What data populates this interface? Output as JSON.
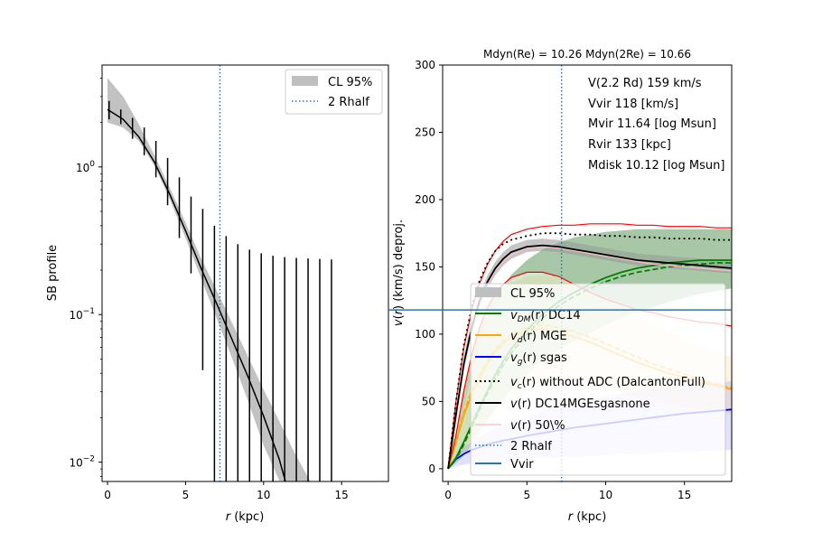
{
  "chart_data": [
    {
      "type": "line",
      "panel": "left",
      "title": "",
      "xlabel": "r (kpc)",
      "ylabel": "SB profile",
      "yscale": "log",
      "xlim": [
        -0.35,
        18
      ],
      "ylim": [
        0.0074,
        4.9
      ],
      "xticks": [
        0,
        5,
        10,
        15
      ],
      "yticks": [
        {
          "value": 1,
          "label": "10^0",
          "base": "10",
          "exp": "0"
        },
        {
          "value": 0.1,
          "label": "10^-1",
          "base": "10",
          "exp": "−1"
        },
        {
          "value": 0.01,
          "label": "10^-2",
          "base": "10",
          "exp": "−2"
        }
      ],
      "grid": false,
      "legend": {
        "placement": "top-right",
        "entries": [
          {
            "label": "CL 95%",
            "kind": "patch",
            "color": "#bfbfbf"
          },
          {
            "label": "2 Rhalf",
            "kind": "dotted",
            "color": "#1f77b4"
          }
        ]
      },
      "vline_2rhalf": 7.2,
      "model_curve": {
        "color": "#000000",
        "x": [
          0,
          1,
          2,
          3,
          4,
          5,
          6,
          7,
          8,
          9,
          10,
          11,
          11.4
        ],
        "y": [
          2.45,
          2.1,
          1.6,
          1.08,
          0.65,
          0.37,
          0.205,
          0.118,
          0.067,
          0.038,
          0.0205,
          0.0105,
          0.0074
        ]
      },
      "cl95_band": {
        "color": "#bfbfbf",
        "x": [
          0,
          1,
          2,
          3,
          4,
          5,
          6,
          7,
          8,
          9,
          10,
          11,
          12,
          13,
          13.3
        ],
        "lower": [
          2.0,
          1.85,
          1.5,
          1.02,
          0.6,
          0.33,
          0.175,
          0.094,
          0.05,
          0.026,
          0.013,
          0.0075,
          0.0074,
          0.0074,
          0.0074
        ],
        "upper": [
          4.0,
          3.0,
          1.95,
          1.2,
          0.72,
          0.42,
          0.24,
          0.145,
          0.087,
          0.052,
          0.031,
          0.019,
          0.0115,
          0.0074,
          0.0074
        ]
      },
      "errorbars": {
        "color": "#000000",
        "points": [
          {
            "x": 0.1,
            "y": 2.45,
            "lo": 2.1,
            "hi": 2.8
          },
          {
            "x": 0.85,
            "y": 2.2,
            "lo": 1.95,
            "hi": 2.45
          },
          {
            "x": 1.6,
            "y": 1.85,
            "lo": 1.55,
            "hi": 2.15
          },
          {
            "x": 2.35,
            "y": 1.5,
            "lo": 1.2,
            "hi": 1.85
          },
          {
            "x": 3.1,
            "y": 1.15,
            "lo": 0.85,
            "hi": 1.5
          },
          {
            "x": 3.85,
            "y": 0.82,
            "lo": 0.55,
            "hi": 1.15
          },
          {
            "x": 4.6,
            "y": 0.56,
            "lo": 0.33,
            "hi": 0.85
          },
          {
            "x": 5.35,
            "y": 0.36,
            "lo": 0.19,
            "hi": 0.63
          },
          {
            "x": 6.1,
            "y": 0.23,
            "lo": 0.042,
            "hi": 0.52
          },
          {
            "x": 6.85,
            "y": 0.145,
            "lo": 0.0074,
            "hi": 0.4
          },
          {
            "x": 7.6,
            "y": 0.09,
            "lo": 0.0074,
            "hi": 0.34
          },
          {
            "x": 8.35,
            "y": 0.055,
            "lo": 0.0074,
            "hi": 0.3
          },
          {
            "x": 9.1,
            "y": 0.034,
            "lo": 0.0074,
            "hi": 0.275
          },
          {
            "x": 9.85,
            "y": 0.021,
            "lo": 0.0074,
            "hi": 0.26
          },
          {
            "x": 10.6,
            "y": 0.013,
            "lo": 0.0074,
            "hi": 0.25
          },
          {
            "x": 11.35,
            "y": 0.008,
            "lo": 0.0074,
            "hi": 0.245
          },
          {
            "x": 12.1,
            "y": 0.005,
            "lo": 0.0074,
            "hi": 0.242
          },
          {
            "x": 12.85,
            "y": 0.003,
            "lo": 0.0074,
            "hi": 0.24
          },
          {
            "x": 13.6,
            "y": 0.002,
            "lo": 0.0074,
            "hi": 0.238
          },
          {
            "x": 14.35,
            "y": 0.0012,
            "lo": 0.0074,
            "hi": 0.236
          }
        ]
      }
    },
    {
      "type": "line",
      "panel": "right",
      "title": "Mdyn(Re) = 10.26  Mdyn(2Re) = 10.66",
      "xlabel": "r (kpc)",
      "ylabel": "v(r) (km/s) deproj.",
      "yscale": "linear",
      "xlim": [
        -0.35,
        18
      ],
      "ylim": [
        -9.5,
        300
      ],
      "xticks": [
        0,
        5,
        10,
        15
      ],
      "yticks": [
        0,
        50,
        100,
        150,
        200,
        250,
        300
      ],
      "grid": false,
      "annotations": [
        "V(2.2 Rd) 159 km/s",
        "Vvir 118 [km/s]",
        "Mvir 11.64 [log Msun]",
        "Rvir 133 [kpc]",
        "Mdisk 10.12 [log Msun]"
      ],
      "legend": {
        "placement": "lower-center",
        "entries": [
          {
            "label": "CL 95%",
            "kind": "patch",
            "color": "#bfbfbf"
          },
          {
            "label_main": "v",
            "label_sub": "DM",
            "label_rest": "(r) DC14",
            "kind": "solid",
            "color": "#008000"
          },
          {
            "label_main": "v",
            "label_sub": "d",
            "label_rest": "(r) MGE",
            "kind": "solid",
            "color": "#ffa500"
          },
          {
            "label_main": "v",
            "label_sub": "g",
            "label_rest": "(r) sgas",
            "kind": "solid",
            "color": "#0000ff"
          },
          {
            "label_main": "v",
            "label_sub": "c",
            "label_rest": "(r) without ADC (DalcantonFull)",
            "kind": "dotted",
            "color": "#000000"
          },
          {
            "label_main": "v",
            "label_sub": "",
            "label_rest": "(r) DC14MGEsgasnone",
            "kind": "solid",
            "color": "#000000"
          },
          {
            "label_main": "v",
            "label_sub": "",
            "label_rest": "(r) 50\\%",
            "kind": "solid",
            "color": "#ffc0cb"
          },
          {
            "label": "2 Rhalf",
            "kind": "dotted",
            "color": "#1f77b4"
          },
          {
            "label": "Vvir",
            "kind": "solid",
            "color": "#1f77b4"
          }
        ]
      },
      "vline_2rhalf": 7.2,
      "hline_vvir": 118,
      "x": [
        0,
        0.5,
        1,
        1.5,
        2,
        2.5,
        3,
        3.5,
        4,
        5,
        6,
        7,
        8,
        9,
        10,
        11,
        12,
        13,
        14,
        15,
        16,
        17,
        18
      ],
      "series": [
        {
          "name": "v(r) DC14MGEsgasnone",
          "color": "#000000",
          "style": "solid",
          "values": [
            0,
            40,
            78,
            105,
            125,
            139,
            149,
            156,
            161,
            165,
            166,
            165,
            163,
            161,
            159,
            157,
            155,
            154,
            153,
            152,
            151,
            150,
            149
          ]
        },
        {
          "name": "v_c(r) without ADC (DalcantonFull)",
          "color": "#000000",
          "style": "dotted",
          "values": [
            0,
            50,
            92,
            120,
            140,
            153,
            162,
            167,
            170,
            173,
            175,
            175,
            174,
            174,
            173,
            173,
            172,
            172,
            171,
            171,
            171,
            170,
            170
          ]
        },
        {
          "name": "CL upper (red)",
          "color": "#ff0000",
          "style": "solid",
          "values": [
            0,
            50,
            90,
            118,
            138,
            152,
            162,
            169,
            174,
            178,
            180,
            181,
            181,
            182,
            182,
            182,
            181,
            181,
            180,
            180,
            180,
            179,
            179
          ]
        },
        {
          "name": "CL lower (red)",
          "color": "#ff0000",
          "style": "solid",
          "values": [
            0,
            25,
            58,
            85,
            105,
            120,
            130,
            137,
            142,
            146,
            146,
            143,
            137,
            131,
            126,
            122,
            118,
            116,
            113,
            111,
            109,
            108,
            106
          ]
        },
        {
          "name": "v(r) 50%",
          "color": "#ffc0cb",
          "style": "solid",
          "values": [
            0,
            38,
            76,
            103,
            123,
            137,
            147,
            154,
            159,
            164,
            165,
            164,
            162,
            160,
            158,
            156,
            154,
            152,
            151,
            150,
            149,
            148,
            147
          ]
        },
        {
          "name": "v_DM(r) DC14",
          "color": "#008000",
          "style": "solid",
          "values": [
            0,
            8,
            20,
            33,
            46,
            58,
            70,
            80,
            89,
            103,
            115,
            124,
            131,
            137,
            142,
            146,
            149,
            151,
            153,
            154,
            155,
            155,
            155
          ]
        },
        {
          "name": "v_DM(r) DC14 50%",
          "color": "#008000",
          "style": "dashed",
          "values": [
            0,
            7,
            18,
            31,
            44,
            56,
            67,
            77,
            86,
            100,
            112,
            121,
            128,
            134,
            139,
            143,
            146,
            148,
            150,
            151,
            152,
            153,
            153
          ]
        },
        {
          "name": "v_d(r) MGE",
          "color": "#ffa500",
          "style": "solid",
          "values": [
            0,
            20,
            40,
            55,
            67,
            78,
            87,
            93,
            98,
            103,
            104,
            102,
            98,
            94,
            89,
            84,
            79,
            75,
            71,
            68,
            64,
            62,
            59
          ]
        },
        {
          "name": "v_d(r) MGE 50%",
          "color": "#ffa500",
          "style": "dashed",
          "values": [
            0,
            20,
            42,
            58,
            70,
            80,
            89,
            95,
            100,
            105,
            107,
            105,
            102,
            98,
            93,
            88,
            83,
            78,
            74,
            70,
            66,
            63,
            60
          ]
        },
        {
          "name": "v_g(r) sgas",
          "color": "#0000ff",
          "style": "solid",
          "values": [
            0,
            7,
            11,
            14,
            16,
            18,
            19.5,
            21,
            22,
            24.5,
            26.5,
            28.5,
            30.5,
            32,
            33.5,
            35,
            36.5,
            38,
            39.5,
            41,
            42,
            43,
            44
          ]
        }
      ],
      "bands": [
        {
          "name": "total CL 95%",
          "color": "#bfbfbf",
          "lower": [
            0,
            36,
            73,
            100,
            120,
            134,
            144,
            151,
            156,
            161,
            162,
            161,
            159,
            157,
            155,
            153,
            151,
            150,
            149,
            148,
            147,
            146,
            145
          ],
          "upper": [
            0,
            44,
            84,
            110,
            130,
            144,
            154,
            161,
            166,
            170,
            171,
            170,
            168,
            166,
            164,
            162,
            160,
            159,
            158,
            157,
            156,
            155,
            154
          ]
        },
        {
          "name": "DM CL 95%",
          "color": "#008000",
          "lower": [
            0,
            4,
            10,
            18,
            27,
            36,
            44,
            52,
            59,
            70,
            80,
            88,
            95,
            101,
            107,
            112,
            117,
            120,
            124,
            127,
            130,
            132,
            134
          ],
          "upper": [
            0,
            20,
            45,
            70,
            92,
            110,
            125,
            136,
            144,
            155,
            163,
            168,
            172,
            174,
            176,
            177,
            178,
            178,
            178,
            178,
            178,
            178,
            178
          ]
        },
        {
          "name": "disk CL 95%",
          "color": "#ffa500",
          "lower": [
            0,
            6,
            14,
            22,
            30,
            37,
            43,
            48,
            52,
            57,
            60,
            61,
            61,
            60,
            58,
            56,
            53,
            51,
            48,
            46,
            44,
            42,
            40
          ],
          "upper": [
            0,
            32,
            62,
            85,
            102,
            116,
            126,
            133,
            138,
            143,
            144,
            142,
            138,
            133,
            127,
            120,
            113,
            107,
            101,
            96,
            91,
            87,
            83
          ]
        },
        {
          "name": "gas CL 95%",
          "color": "#0000ff",
          "lower": [
            0,
            2,
            3,
            4,
            5,
            5.5,
            6,
            6.5,
            7,
            7.5,
            8,
            8.5,
            9,
            9.5,
            10,
            10.5,
            11,
            11.5,
            12,
            12.5,
            13,
            13.5,
            14
          ],
          "upper": [
            0,
            10,
            16,
            20,
            24,
            27,
            30,
            33,
            35,
            39,
            43,
            46,
            49,
            52,
            54,
            56,
            58,
            60,
            61,
            62,
            63,
            64,
            65
          ]
        }
      ]
    }
  ]
}
